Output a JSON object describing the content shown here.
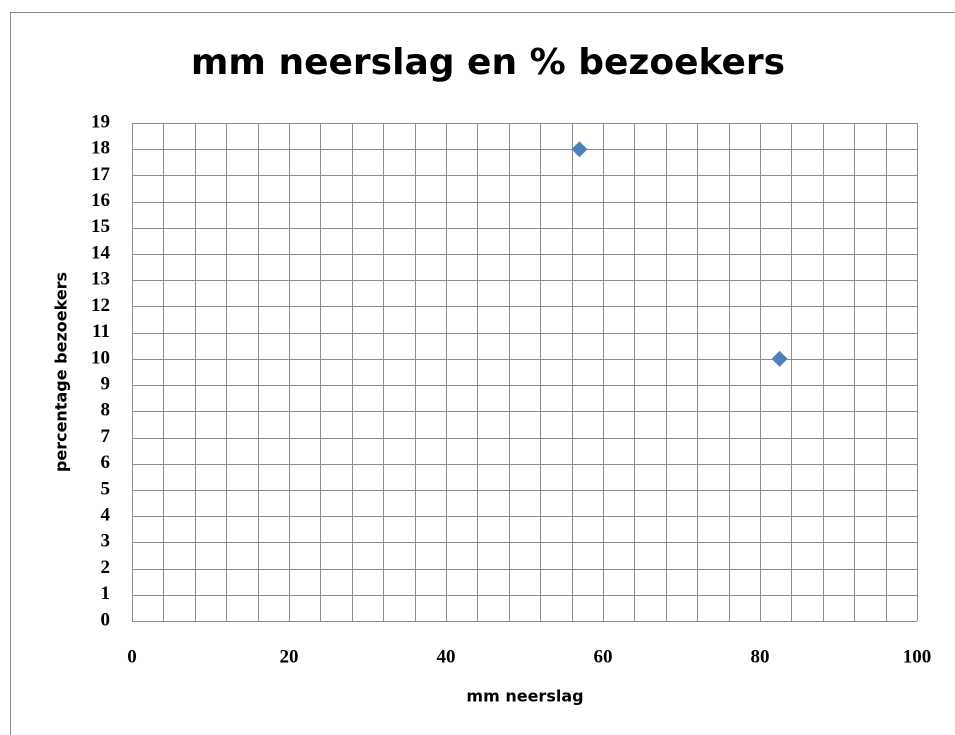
{
  "chart_data": {
    "type": "scatter",
    "title": "mm neerslag en % bezoekers",
    "xlabel": "mm neerslag",
    "ylabel": "percentage bezoekers",
    "series": [
      {
        "color": "#4f81bd",
        "x": [
          57,
          82.5
        ],
        "values": [
          18,
          10
        ]
      }
    ],
    "xlim": [
      0,
      100
    ],
    "xticks": [
      0,
      20,
      40,
      60,
      80,
      100
    ],
    "xgrid": [
      0,
      4,
      8,
      12,
      16,
      20,
      24,
      28,
      32,
      36,
      40,
      44,
      48,
      52,
      56,
      60,
      64,
      68,
      72,
      76,
      80,
      84,
      88,
      92,
      96,
      100
    ],
    "ylim": [
      0,
      19
    ],
    "yticks": [
      0,
      1,
      2,
      3,
      4,
      5,
      6,
      7,
      8,
      9,
      10,
      11,
      12,
      13,
      14,
      15,
      16,
      17,
      18,
      19
    ],
    "grid": true
  }
}
